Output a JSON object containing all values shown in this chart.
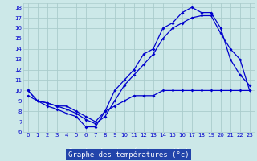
{
  "title": "Graphe des températures (°c)",
  "bg_color": "#cce8e8",
  "plot_bg": "#cce8e8",
  "grid_color": "#aacccc",
  "line_color": "#0000cc",
  "xlabel_bg": "#2244aa",
  "xlabel_fg": "#ffffff",
  "xlim": [
    -0.5,
    23.5
  ],
  "ylim": [
    6,
    18.4
  ],
  "xticks": [
    0,
    1,
    2,
    3,
    4,
    5,
    6,
    7,
    8,
    9,
    10,
    11,
    12,
    13,
    14,
    15,
    16,
    17,
    18,
    19,
    20,
    21,
    22,
    23
  ],
  "yticks": [
    6,
    7,
    8,
    9,
    10,
    11,
    12,
    13,
    14,
    15,
    16,
    17,
    18
  ],
  "curve1_x": [
    0,
    1,
    2,
    3,
    4,
    5,
    6,
    7,
    8,
    9,
    10,
    11,
    12,
    13,
    14,
    15,
    16,
    17,
    18,
    19,
    20,
    21,
    22,
    23
  ],
  "curve1_y": [
    10,
    9,
    8.5,
    8.2,
    7.8,
    7.5,
    6.5,
    6.5,
    8.0,
    10.0,
    11.0,
    12.0,
    13.5,
    14.0,
    16.0,
    16.5,
    17.5,
    18.0,
    17.5,
    17.5,
    16.0,
    13.0,
    11.5,
    10.5
  ],
  "curve2_x": [
    0,
    1,
    2,
    3,
    4,
    5,
    6,
    7,
    8,
    9,
    10,
    11,
    12,
    13,
    14,
    15,
    16,
    17,
    18,
    19,
    20,
    21,
    22,
    23
  ],
  "curve2_y": [
    10,
    9,
    8.8,
    8.5,
    8.2,
    7.8,
    7.2,
    6.8,
    7.5,
    9.0,
    10.5,
    11.5,
    12.5,
    13.5,
    15.0,
    16.0,
    16.5,
    17.0,
    17.2,
    17.2,
    15.5,
    14.0,
    13.0,
    10.0
  ],
  "curve3_x": [
    0,
    1,
    2,
    3,
    4,
    5,
    6,
    7,
    8,
    9,
    10,
    11,
    12,
    13,
    14,
    15,
    16,
    17,
    18,
    19,
    20,
    21,
    22,
    23
  ],
  "curve3_y": [
    9.5,
    9.0,
    8.8,
    8.5,
    8.5,
    8.0,
    7.5,
    7.0,
    8.0,
    8.5,
    9.0,
    9.5,
    9.5,
    9.5,
    10.0,
    10.0,
    10.0,
    10.0,
    10.0,
    10.0,
    10.0,
    10.0,
    10.0,
    10.0
  ]
}
